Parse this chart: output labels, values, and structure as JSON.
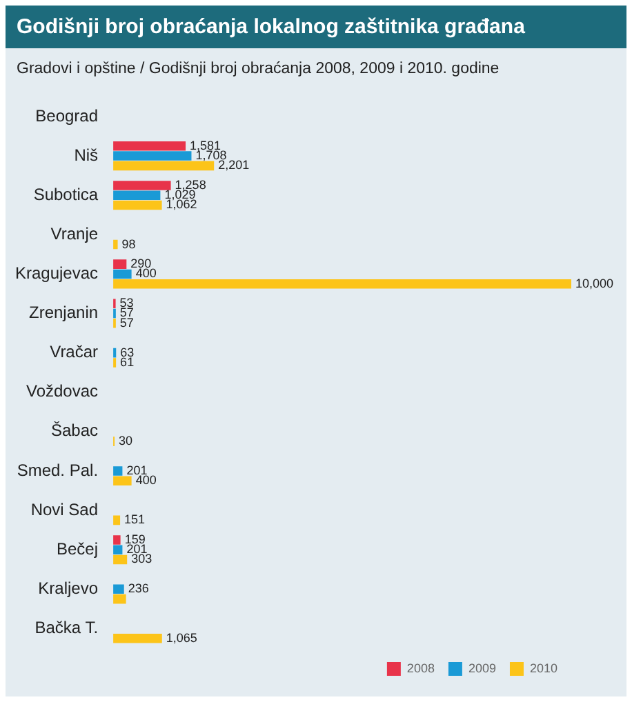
{
  "chart_data": {
    "type": "bar",
    "orientation": "horizontal",
    "title": "Godišnji broj obraćanja lokalnog zaštitnika građana",
    "subtitle": "Gradovi i opštine / Godišnji broj obraćanja 2008, 2009 i 2010. godine",
    "categories": [
      "Beograd",
      "Niš",
      "Subotica",
      "Vranje",
      "Kragujevac",
      "Zrenjanin",
      "Vračar",
      "Voždovac",
      "Šabac",
      "Smed. Pal.",
      "Novi Sad",
      "Bečej",
      "Kraljevo",
      "Bačka T."
    ],
    "series": [
      {
        "name": "2008",
        "color": "#e8334a",
        "values": [
          null,
          1581,
          1258,
          null,
          290,
          53,
          null,
          null,
          null,
          null,
          null,
          159,
          null,
          null
        ],
        "value_labels": [
          null,
          "1,581",
          "1,258",
          null,
          "290",
          "53",
          null,
          null,
          null,
          null,
          null,
          "159",
          null,
          null
        ]
      },
      {
        "name": "2009",
        "color": "#1a9ad6",
        "values": [
          null,
          1708,
          1029,
          null,
          400,
          57,
          63,
          null,
          null,
          201,
          null,
          201,
          236,
          null
        ],
        "value_labels": [
          null,
          "1,708",
          "1,029",
          null,
          "400",
          "57",
          "63",
          null,
          null,
          "201",
          null,
          "201",
          "236",
          null
        ]
      },
      {
        "name": "2010",
        "color": "#fcc419",
        "values": [
          null,
          2201,
          1062,
          98,
          10000,
          57,
          61,
          null,
          30,
          400,
          151,
          303,
          280,
          1065
        ],
        "value_labels": [
          null,
          "2,201",
          "1,062",
          "98",
          "10,000",
          "57",
          "61",
          null,
          "30",
          "400",
          "151",
          "303",
          null,
          "1,065"
        ]
      }
    ],
    "grid": false,
    "legend": "bottom right",
    "tick_labels": "y"
  }
}
